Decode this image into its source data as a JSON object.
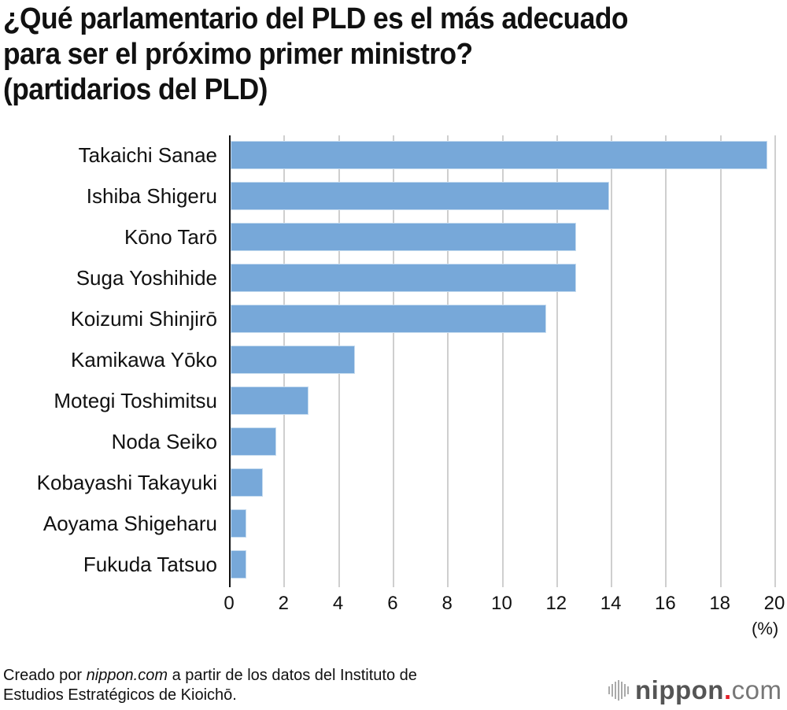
{
  "title": {
    "line1": "¿Qué parlamentario del PLD es el más adecuado",
    "line2": "para ser el próximo primer ministro?",
    "line3": "(partidarios del PLD)"
  },
  "axis": {
    "ticks": [
      "0",
      "2",
      "4",
      "6",
      "8",
      "10",
      "12",
      "14",
      "16",
      "18",
      "20"
    ],
    "unit": "(%)"
  },
  "source": {
    "prefix": "Creado por ",
    "site": "nippon.com",
    "suffix": " a partir de los datos del Instituto de",
    "line2": "Estudios Estratégicos de Kioichō."
  },
  "logo": {
    "name": "nippon",
    "dot": ".",
    "tld": "com"
  },
  "colors": {
    "bar": "#77a8d9",
    "grid": "#cfcfcf",
    "logo_dot": "#e4202a"
  },
  "chart_data": {
    "type": "bar",
    "orientation": "horizontal",
    "title": "¿Qué parlamentario del PLD es el más adecuado para ser el próximo primer ministro? (partidarios del PLD)",
    "categories": [
      "Takaichi Sanae",
      "Ishiba Shigeru",
      "Kōno Tarō",
      "Suga Yoshihide",
      "Koizumi Shinjirō",
      "Kamikawa Yōko",
      "Motegi Toshimitsu",
      "Noda Seiko",
      "Kobayashi Takayuki",
      "Aoyama Shigeharu",
      "Fukuda Tatsuo"
    ],
    "values": [
      19.7,
      13.9,
      12.7,
      12.7,
      11.6,
      4.6,
      2.9,
      1.7,
      1.2,
      0.6,
      0.6
    ],
    "xlabel": "(%)",
    "ylabel": "",
    "xlim": [
      0,
      20
    ],
    "xticks": [
      0,
      2,
      4,
      6,
      8,
      10,
      12,
      14,
      16,
      18,
      20
    ],
    "grid": true,
    "legend": null
  }
}
